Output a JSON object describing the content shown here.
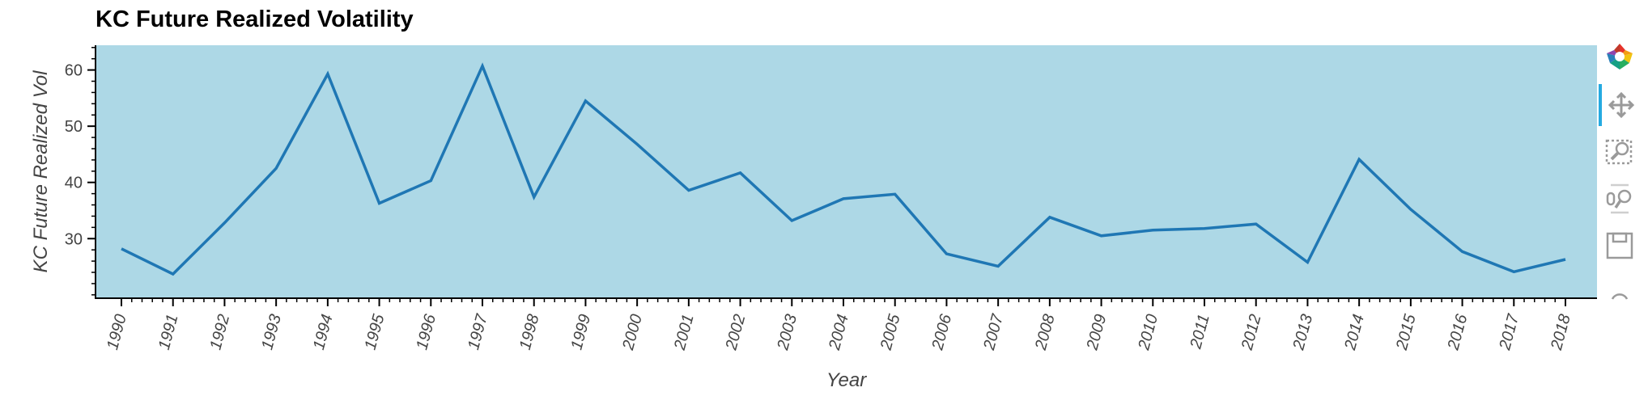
{
  "chart_data": {
    "type": "line",
    "title": "KC Future Realized Volatility",
    "xlabel": "Year",
    "ylabel": "KC Future Realized Vol",
    "x": [
      "1990",
      "1991",
      "1992",
      "1993",
      "1994",
      "1995",
      "1996",
      "1997",
      "1998",
      "1999",
      "2000",
      "2001",
      "2002",
      "2003",
      "2004",
      "2005",
      "2006",
      "2007",
      "2008",
      "2009",
      "2010",
      "2011",
      "2012",
      "2013",
      "2014",
      "2015",
      "2016",
      "2017",
      "2018"
    ],
    "series": [
      {
        "values": [
          28.2,
          23.7,
          32.8,
          42.5,
          59.3,
          36.3,
          40.3,
          60.7,
          37.4,
          54.5,
          46.8,
          38.6,
          41.7,
          33.2,
          37.1,
          37.9,
          27.3,
          25.1,
          33.8,
          30.5,
          31.5,
          31.8,
          32.6,
          25.8,
          44.1,
          35.2,
          27.7,
          24.1,
          26.3
        ],
        "color": "#1f77b4"
      }
    ],
    "ylim": [
      19.4,
      64.4
    ],
    "yticks": [
      30,
      40,
      50,
      60
    ],
    "grid": false,
    "background": "#add8e6"
  },
  "toolbar": {
    "tools": [
      {
        "name": "bokeh-logo-icon"
      },
      {
        "name": "pan-tool-icon",
        "active": true
      },
      {
        "name": "box-zoom-tool-icon"
      },
      {
        "name": "wheel-zoom-tool-icon"
      },
      {
        "name": "save-tool-icon"
      },
      {
        "name": "reset-tool-icon"
      }
    ]
  }
}
